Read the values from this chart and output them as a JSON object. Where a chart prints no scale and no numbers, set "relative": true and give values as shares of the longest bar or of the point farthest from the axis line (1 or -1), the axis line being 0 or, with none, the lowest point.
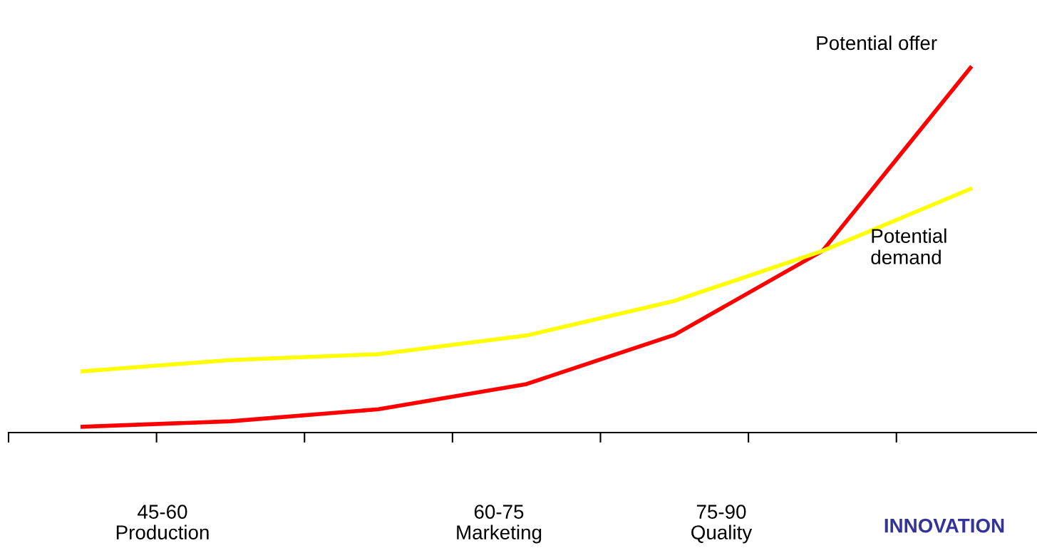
{
  "chart_data": {
    "type": "line",
    "relative": true,
    "categories": [
      null,
      null,
      null,
      null,
      null,
      null,
      null
    ],
    "series": [
      {
        "name": "Potential offer",
        "color": "#ff0000",
        "values": [
          0.016,
          0.031,
          0.064,
          0.133,
          0.268,
          0.498,
          1.0
        ]
      },
      {
        "name": "Potential demand",
        "color": "#ffff00",
        "values": [
          0.168,
          0.199,
          0.215,
          0.266,
          0.361,
          0.498,
          0.668
        ]
      }
    ],
    "annotations": [
      "45-60\nProduction",
      "60-75\nMarketing",
      "75-90\nQuality",
      "INNOVATION"
    ],
    "marker": "none",
    "line_style": "solid",
    "grid": false,
    "legend": false
  }
}
